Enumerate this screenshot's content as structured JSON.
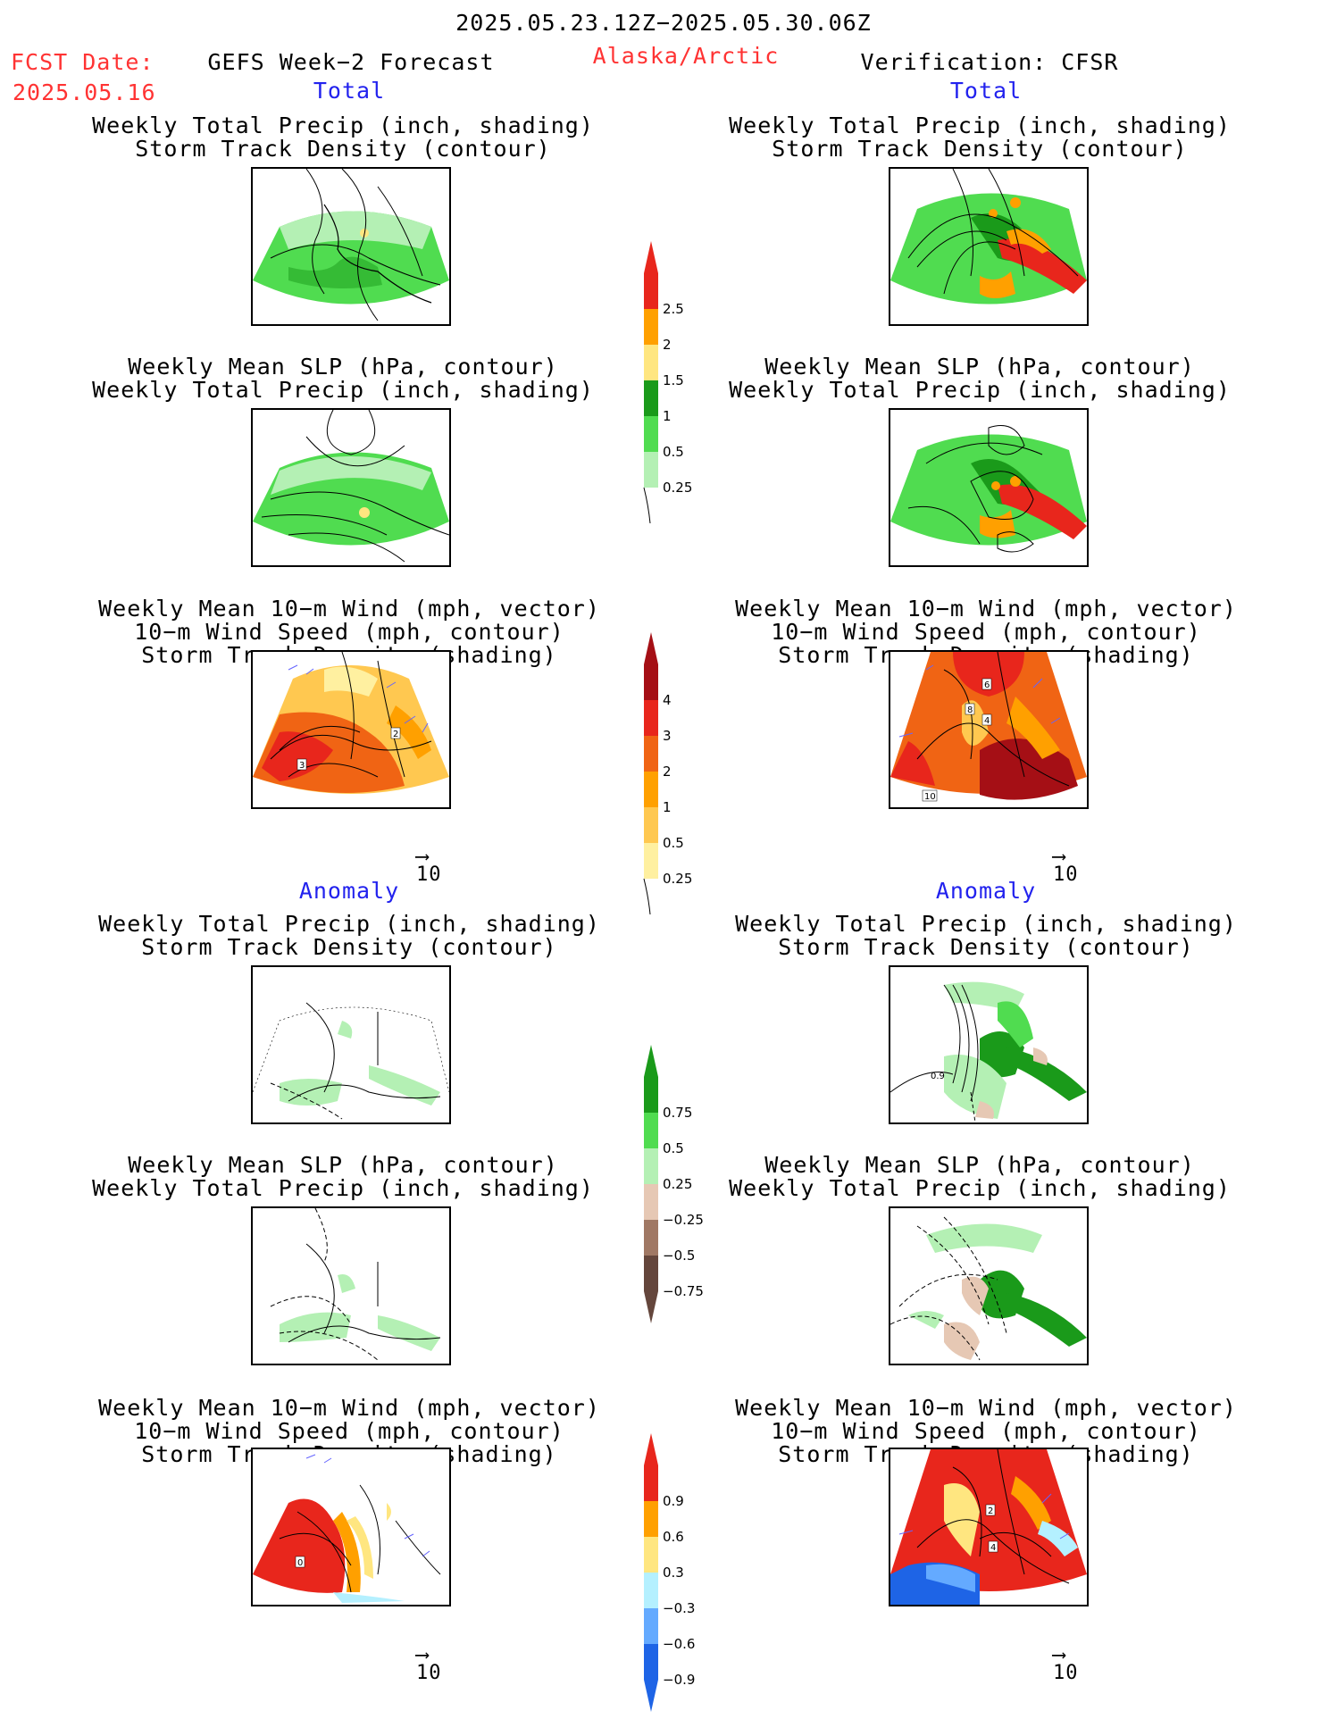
{
  "header": {
    "valid_period": "2025.05.23.12Z−2025.05.30.06Z",
    "fcst_label": "FCST Date:",
    "fcst_date": "2025.05.16",
    "product": "GEFS Week−2 Forecast",
    "region": "Alaska/Arctic",
    "verification": "Verification: CFSR"
  },
  "sections": {
    "total_left": "Total",
    "total_right": "Total",
    "anomaly_left": "Anomaly",
    "anomaly_right": "Anomaly"
  },
  "panel_titles": {
    "precip_storm": [
      "Weekly Total Precip (inch, shading)",
      "Storm Track Density (contour)"
    ],
    "slp_precip": [
      "Weekly Mean SLP (hPa, contour)",
      "Weekly Total Precip (inch, shading)"
    ],
    "wind_storm": [
      "Weekly Mean 10−m Wind (mph, vector)",
      "10−m Wind Speed (mph, contour)",
      "Storm Track Density (shading)"
    ]
  },
  "vector_reference": "10",
  "colorbars": {
    "precip_total": {
      "labels": [
        "2.5",
        "2",
        "1.5",
        "1",
        "0.5",
        "0.25"
      ],
      "colors": [
        "#e8261c",
        "#ffa000",
        "#ffe680",
        "#1a9a1a",
        "#50dc50",
        "#b4f0b4"
      ]
    },
    "storm_total": {
      "labels": [
        "4",
        "3",
        "2",
        "1",
        "0.5",
        "0.25"
      ],
      "colors": [
        "#a50f15",
        "#e8261c",
        "#f06414",
        "#ffa000",
        "#ffc850",
        "#fff0a0"
      ]
    },
    "precip_anom": {
      "labels": [
        "0.75",
        "0.5",
        "0.25",
        "−0.25",
        "−0.5",
        "−0.75"
      ],
      "colors": [
        "#1a9a1a",
        "#50dc50",
        "#b4f0b4",
        "#e6c8b4",
        "#a07864",
        "#64463c"
      ]
    },
    "storm_anom": {
      "labels": [
        "0.9",
        "0.6",
        "0.3",
        "−0.3",
        "−0.6",
        "−0.9"
      ],
      "colors": [
        "#e8261c",
        "#ffa000",
        "#ffe680",
        "#b4f0ff",
        "#64aaff",
        "#1e64e6"
      ]
    },
    "contour_labels": {
      "wind_left_a": "3",
      "wind_left_b": "2",
      "wind_right_a": "6",
      "wind_right_b": "8",
      "wind_right_c": "4",
      "wind_right_d": "10",
      "precip_anom_right": "0.9",
      "wind_anom_left": "0",
      "wind_anom_right_a": "2",
      "wind_anom_right_b": "4"
    }
  }
}
